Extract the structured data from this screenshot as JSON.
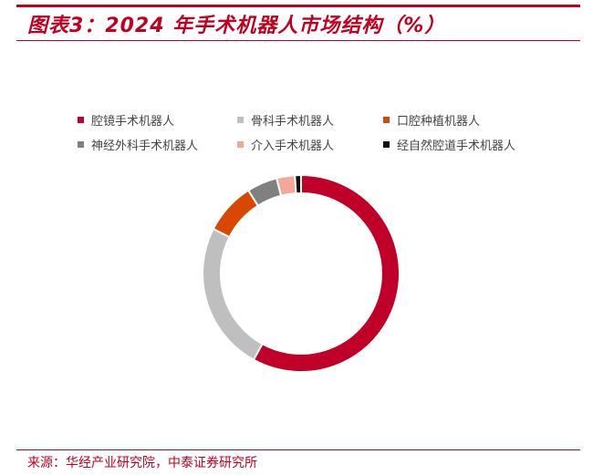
{
  "chart_data": {
    "type": "pie",
    "donut": true,
    "title": "图表3：2024 年手术机器人市场结构（%）",
    "legend_placement": "top",
    "categories": [
      "腔镜手术机器人",
      "骨科手术机器人",
      "口腔种植机器人",
      "神经外科手术机器人",
      "介入手术机器人",
      "经自然腔道手术机器人"
    ],
    "values": [
      58,
      24.5,
      8.5,
      5,
      3,
      1
    ],
    "colors": [
      "#c00028",
      "#bfbfbf",
      "#d94800",
      "#808080",
      "#f5a797",
      "#111111"
    ]
  },
  "source": "来源：华经产业研究院，中泰证券研究所"
}
